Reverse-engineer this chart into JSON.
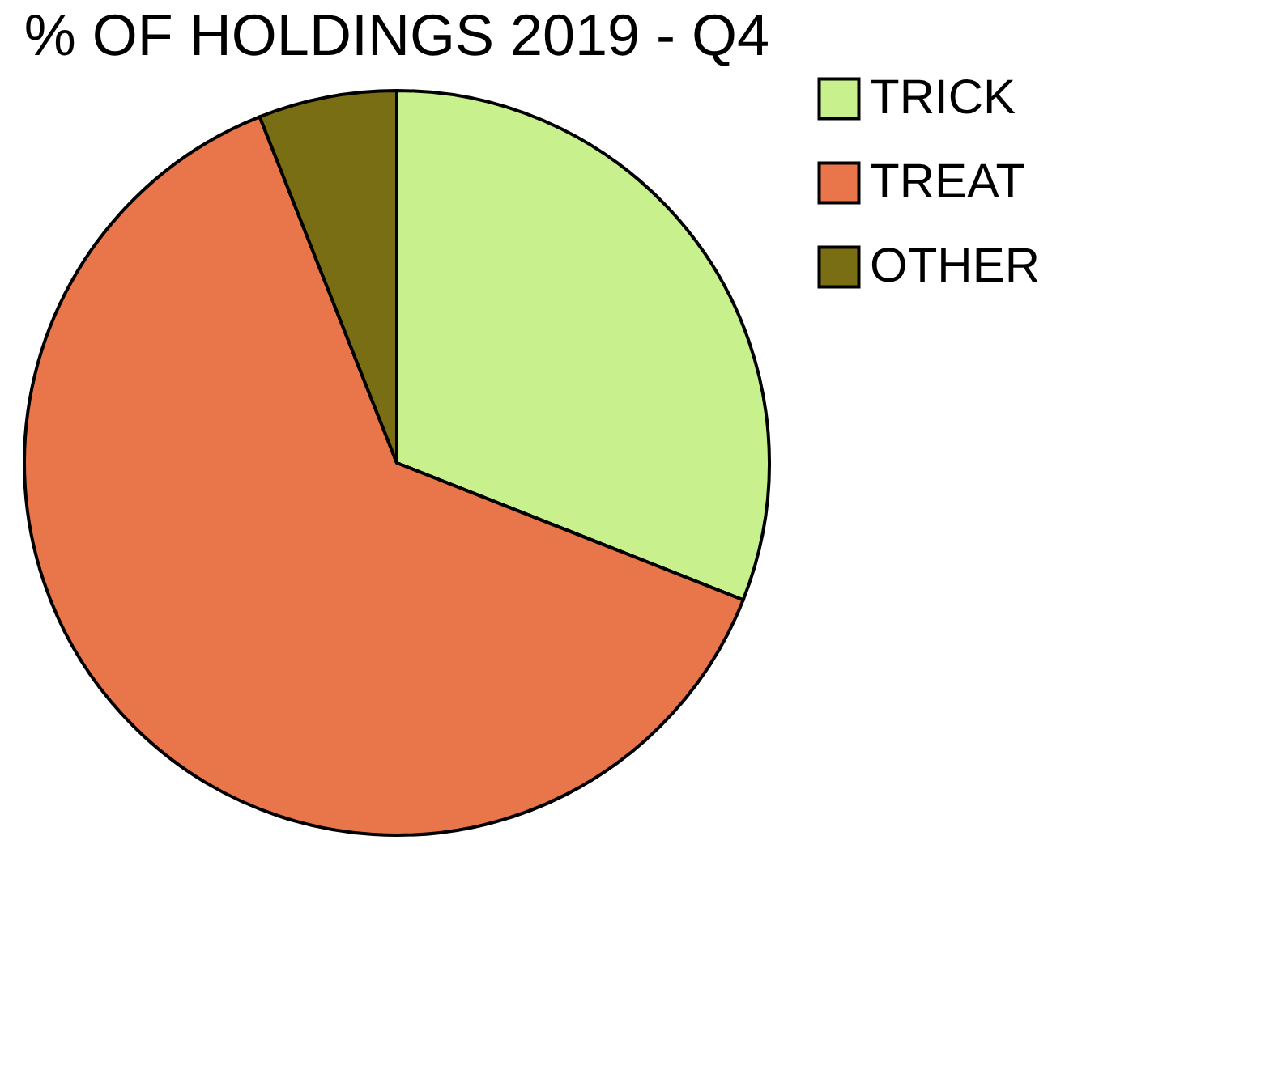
{
  "chart_data": {
    "type": "pie",
    "title": "% OF HOLDINGS 2019 - Q4",
    "categories": [
      "TRICK",
      "TREAT",
      "OTHER"
    ],
    "values": [
      31,
      63,
      6
    ],
    "colors": [
      "#c8f08c",
      "#e8764a",
      "#7a6e14"
    ],
    "legend": "right"
  }
}
